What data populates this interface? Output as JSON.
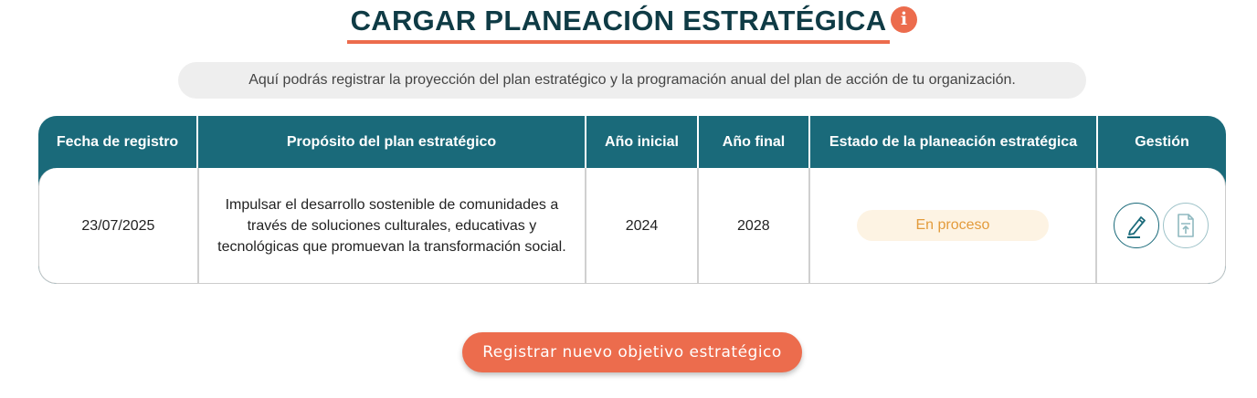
{
  "header": {
    "title": "CARGAR PLANEACIÓN ESTRATÉGICA",
    "info_icon": "info-icon",
    "info_glyph": "i"
  },
  "description": "Aquí podrás registrar la proyección del plan estratégico y la programación anual del plan de acción de tu organización.",
  "table": {
    "columns": [
      "Fecha de registro",
      "Propósito del plan estratégico",
      "Año inicial",
      "Año final",
      "Estado de la planeación estratégica",
      "Gestión"
    ],
    "rows": [
      {
        "fecha": "23/07/2025",
        "proposito": "Impulsar el desarrollo sostenible de comunidades a través de soluciones culturales, educativas y tecnológicas que promuevan la transformación social.",
        "inicial": "2024",
        "final": "2028",
        "estado": "En proceso"
      }
    ]
  },
  "actions": {
    "edit_icon": "pencil-icon",
    "upload_icon": "file-upload-icon"
  },
  "button": {
    "label": "Registrar nuevo objetivo estratégico"
  },
  "colors": {
    "primary": "#1a6a7a",
    "accent": "#ec6c4d",
    "title": "#0f3b45",
    "status_bg": "#fdf3e3",
    "status_text": "#e39b3b"
  }
}
